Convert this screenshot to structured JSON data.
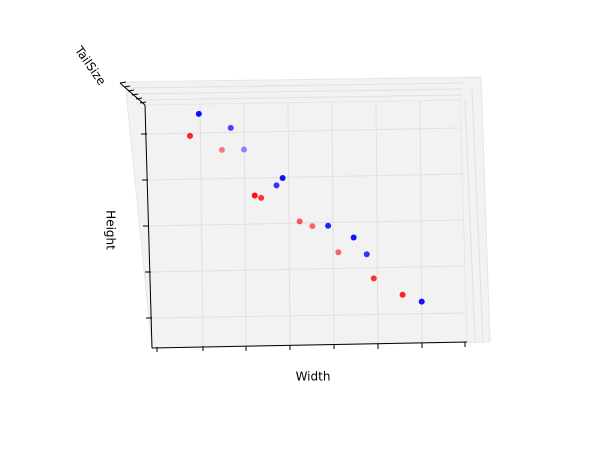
{
  "chart_data": {
    "type": "scatter3d",
    "x_label": "Width",
    "y_label": "Height",
    "z_label": "TailSize",
    "xlim": [
      0,
      10
    ],
    "ylim": [
      0,
      10
    ],
    "zlim": [
      0,
      10
    ],
    "series": [
      {
        "color": "#ff0000",
        "x": [
          1.4,
          2.4,
          3.4,
          3.6,
          4.8,
          5.2,
          6.0,
          7.1,
          8.0
        ],
        "y": [
          8.7,
          8.1,
          6.2,
          6.1,
          5.1,
          4.9,
          3.8,
          2.7,
          2.0
        ],
        "z": [
          8,
          3,
          9,
          7,
          5,
          4,
          4,
          7,
          8
        ]
      },
      {
        "color": "#0000ff",
        "x": [
          1.7,
          2.7,
          3.1,
          4.3,
          4.1,
          5.7,
          6.5,
          6.9,
          8.6
        ],
        "y": [
          9.6,
          9.0,
          8.1,
          6.9,
          6.6,
          4.9,
          4.4,
          3.7,
          1.7
        ],
        "z": [
          9,
          6,
          2,
          9,
          7,
          8,
          9,
          7,
          9
        ]
      }
    ]
  }
}
